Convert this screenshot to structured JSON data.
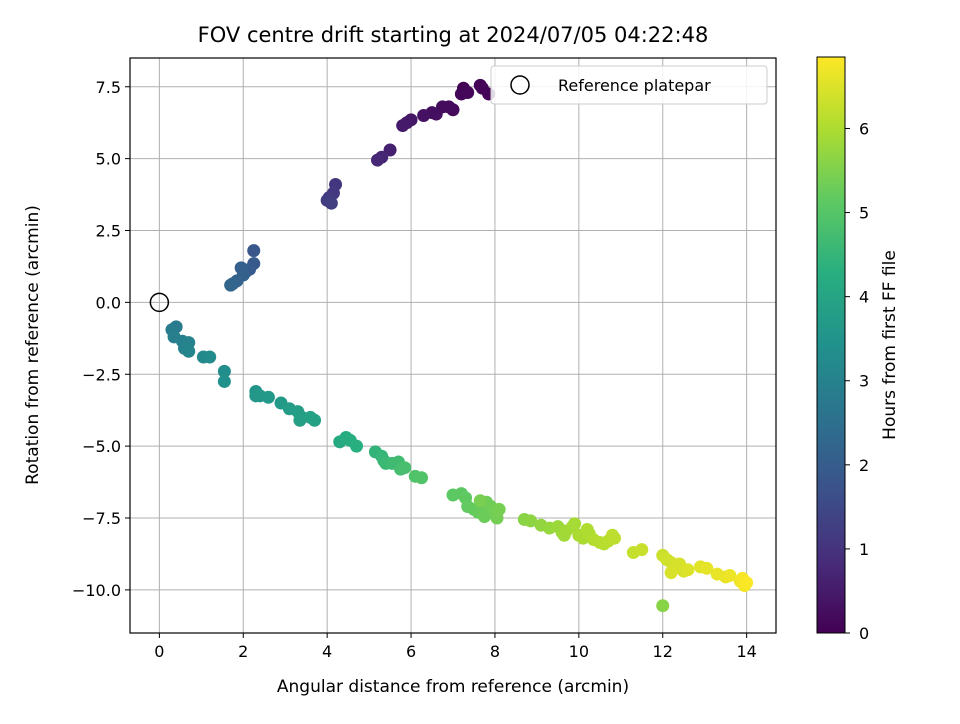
{
  "chart_data": {
    "type": "scatter",
    "title": "FOV centre drift starting at 2024/07/05 04:22:48",
    "xlabel": "Angular distance from reference (arcmin)",
    "ylabel": "Rotation from reference (arcmin)",
    "xlim": [
      -0.7,
      14.7
    ],
    "ylim": [
      -11.5,
      8.5
    ],
    "xticks": [
      0,
      2,
      4,
      6,
      8,
      10,
      12,
      14
    ],
    "yticks": [
      -10.0,
      -7.5,
      -5.0,
      -2.5,
      0.0,
      2.5,
      5.0,
      7.5
    ],
    "grid": true,
    "legend": {
      "location": "top-right",
      "label": "Reference platepar",
      "marker": "open-circle"
    },
    "colorbar": {
      "label": "Hours from first FF file",
      "range": [
        0,
        6.85
      ],
      "ticks": [
        0,
        1,
        2,
        3,
        4,
        5,
        6
      ],
      "colormap": "viridis"
    },
    "reference_point": [
      0,
      0
    ],
    "points": [
      [
        7.25,
        7.45,
        0.02
      ],
      [
        7.65,
        7.55,
        0.04
      ],
      [
        7.7,
        7.45,
        0.06
      ],
      [
        7.85,
        7.25,
        0.08
      ],
      [
        7.2,
        7.25,
        0.1
      ],
      [
        7.35,
        7.3,
        0.12
      ],
      [
        7.0,
        6.7,
        0.18
      ],
      [
        6.9,
        6.8,
        0.2
      ],
      [
        6.75,
        6.8,
        0.22
      ],
      [
        6.6,
        6.55,
        0.25
      ],
      [
        6.5,
        6.6,
        0.28
      ],
      [
        6.3,
        6.5,
        0.32
      ],
      [
        6.0,
        6.35,
        0.4
      ],
      [
        5.9,
        6.25,
        0.44
      ],
      [
        5.8,
        6.15,
        0.48
      ],
      [
        5.5,
        5.3,
        0.62
      ],
      [
        5.3,
        5.05,
        0.7
      ],
      [
        5.2,
        4.95,
        0.75
      ],
      [
        4.2,
        4.1,
        1.05
      ],
      [
        4.15,
        3.8,
        1.1
      ],
      [
        4.05,
        3.65,
        1.15
      ],
      [
        4.0,
        3.55,
        1.2
      ],
      [
        4.1,
        3.45,
        1.25
      ],
      [
        2.25,
        1.8,
        1.85
      ],
      [
        2.25,
        1.35,
        1.9
      ],
      [
        2.15,
        1.15,
        1.95
      ],
      [
        2.05,
        1.05,
        2.0
      ],
      [
        1.95,
        1.2,
        2.05
      ],
      [
        2.0,
        0.95,
        2.1
      ],
      [
        1.85,
        0.75,
        2.15
      ],
      [
        1.75,
        0.65,
        2.2
      ],
      [
        1.7,
        0.6,
        2.25
      ],
      [
        0.4,
        -0.85,
        2.8
      ],
      [
        0.3,
        -0.95,
        2.85
      ],
      [
        0.35,
        -1.2,
        2.9
      ],
      [
        0.55,
        -1.35,
        2.95
      ],
      [
        0.7,
        -1.4,
        3.0
      ],
      [
        0.6,
        -1.6,
        3.05
      ],
      [
        0.7,
        -1.7,
        3.1
      ],
      [
        1.05,
        -1.9,
        3.2
      ],
      [
        1.2,
        -1.9,
        3.25
      ],
      [
        1.55,
        -2.4,
        3.35
      ],
      [
        1.55,
        -2.75,
        3.4
      ],
      [
        2.3,
        -3.1,
        3.55
      ],
      [
        2.4,
        -3.25,
        3.6
      ],
      [
        2.3,
        -3.25,
        3.62
      ],
      [
        2.6,
        -3.3,
        3.65
      ],
      [
        2.9,
        -3.5,
        3.7
      ],
      [
        3.1,
        -3.7,
        3.75
      ],
      [
        3.3,
        -3.8,
        3.8
      ],
      [
        3.4,
        -4.0,
        3.85
      ],
      [
        3.35,
        -4.1,
        3.88
      ],
      [
        3.6,
        -4.0,
        3.9
      ],
      [
        3.7,
        -4.1,
        3.92
      ],
      [
        4.3,
        -4.85,
        4.15
      ],
      [
        4.45,
        -4.7,
        4.2
      ],
      [
        4.55,
        -4.8,
        4.25
      ],
      [
        4.7,
        -5.0,
        4.3
      ],
      [
        5.15,
        -5.2,
        4.45
      ],
      [
        5.3,
        -5.35,
        4.5
      ],
      [
        5.35,
        -5.5,
        4.55
      ],
      [
        5.4,
        -5.6,
        4.6
      ],
      [
        5.55,
        -5.6,
        4.65
      ],
      [
        5.7,
        -5.55,
        4.7
      ],
      [
        5.75,
        -5.8,
        4.75
      ],
      [
        5.85,
        -5.75,
        4.8
      ],
      [
        6.1,
        -6.05,
        4.9
      ],
      [
        6.25,
        -6.1,
        4.95
      ],
      [
        7.0,
        -6.7,
        5.1
      ],
      [
        7.2,
        -6.65,
        5.12
      ],
      [
        7.3,
        -6.8,
        5.15
      ],
      [
        7.35,
        -7.1,
        5.18
      ],
      [
        7.5,
        -7.2,
        5.2
      ],
      [
        7.6,
        -7.3,
        5.22
      ],
      [
        7.7,
        -7.2,
        5.25
      ],
      [
        7.75,
        -7.45,
        5.28
      ],
      [
        7.8,
        -6.95,
        5.3
      ],
      [
        7.9,
        -7.1,
        5.32
      ],
      [
        8.0,
        -7.3,
        5.35
      ],
      [
        8.05,
        -7.5,
        5.38
      ],
      [
        8.1,
        -7.2,
        5.4
      ],
      [
        7.65,
        -6.9,
        5.42
      ],
      [
        8.7,
        -7.55,
        5.6
      ],
      [
        8.85,
        -7.6,
        5.65
      ],
      [
        9.1,
        -7.75,
        5.7
      ],
      [
        9.3,
        -7.85,
        5.75
      ],
      [
        9.5,
        -7.8,
        5.8
      ],
      [
        9.6,
        -8.0,
        5.82
      ],
      [
        9.65,
        -8.1,
        5.85
      ],
      [
        9.7,
        -7.95,
        5.87
      ],
      [
        9.85,
        -7.8,
        5.9
      ],
      [
        9.9,
        -7.7,
        5.92
      ],
      [
        10.0,
        -8.1,
        5.95
      ],
      [
        10.1,
        -8.2,
        5.97
      ],
      [
        10.2,
        -7.9,
        6.0
      ],
      [
        10.25,
        -8.05,
        6.02
      ],
      [
        10.35,
        -8.25,
        6.05
      ],
      [
        10.5,
        -8.35,
        6.08
      ],
      [
        10.6,
        -8.4,
        6.1
      ],
      [
        10.7,
        -8.3,
        6.12
      ],
      [
        10.8,
        -8.1,
        6.15
      ],
      [
        10.85,
        -8.2,
        6.17
      ],
      [
        11.3,
        -8.7,
        6.25
      ],
      [
        11.5,
        -8.6,
        6.28
      ],
      [
        12.0,
        -8.8,
        6.32
      ],
      [
        12.1,
        -8.95,
        6.35
      ],
      [
        12.2,
        -9.05,
        6.38
      ],
      [
        12.3,
        -9.2,
        6.4
      ],
      [
        12.4,
        -9.1,
        6.42
      ],
      [
        12.5,
        -9.35,
        6.45
      ],
      [
        12.2,
        -9.4,
        6.47
      ],
      [
        12.6,
        -9.3,
        6.5
      ],
      [
        12.9,
        -9.2,
        6.55
      ],
      [
        13.05,
        -9.25,
        6.58
      ],
      [
        13.3,
        -9.45,
        6.62
      ],
      [
        13.5,
        -9.55,
        6.65
      ],
      [
        13.6,
        -9.5,
        6.68
      ],
      [
        13.85,
        -9.7,
        6.72
      ],
      [
        13.95,
        -9.85,
        6.75
      ],
      [
        13.9,
        -9.6,
        6.78
      ],
      [
        14.0,
        -9.75,
        6.82
      ],
      [
        12.0,
        -10.55,
        5.6
      ]
    ]
  }
}
